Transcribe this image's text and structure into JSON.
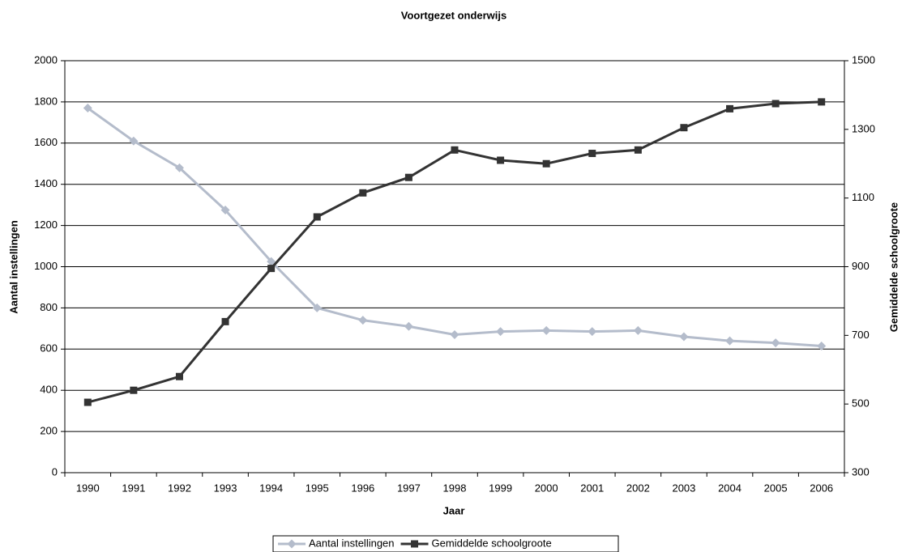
{
  "chart_data": {
    "type": "line",
    "title": "Voortgezet onderwijs",
    "x_label": "Jaar",
    "y_label": "Aantal instellingen",
    "y2_label": "Gemiddelde schoolgroote",
    "categories": [
      "1990",
      "1991",
      "1992",
      "1993",
      "1994",
      "1995",
      "1996",
      "1997",
      "1998",
      "1999",
      "2000",
      "2001",
      "2002",
      "2003",
      "2004",
      "2005",
      "2006"
    ],
    "series": [
      {
        "name": "Aantal instellingen",
        "color": "#b4bccb",
        "marker": "diamond",
        "axis": "y",
        "values": [
          1770,
          1610,
          1480,
          1275,
          1025,
          800,
          740,
          710,
          670,
          685,
          690,
          685,
          690,
          660,
          640,
          630,
          615
        ]
      },
      {
        "name": "Gemiddelde schoolgroote",
        "color": "#333333",
        "marker": "square",
        "axis": "y2",
        "values": [
          505,
          540,
          580,
          740,
          895,
          1045,
          1115,
          1160,
          1240,
          1210,
          1200,
          1230,
          1240,
          1305,
          1360,
          1375,
          1380
        ]
      }
    ],
    "ylim": [
      0,
      2000
    ],
    "yticks": [
      0,
      200,
      400,
      600,
      800,
      1000,
      1200,
      1400,
      1600,
      1800,
      2000
    ],
    "y2lim": [
      300,
      1500
    ],
    "y2ticks": [
      300,
      500,
      700,
      900,
      1100,
      1300,
      1500
    ],
    "grid": true,
    "legend": "bottom"
  }
}
